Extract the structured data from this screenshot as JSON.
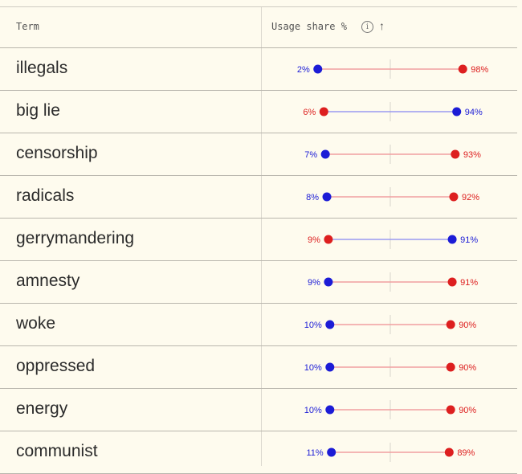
{
  "header": {
    "term_label": "Term",
    "usage_label": "Usage share %",
    "info_icon": "info-circle-icon",
    "sort_icon": "arrow-up-icon"
  },
  "colors": {
    "left": "#1c1cd6",
    "right": "#dd1f1f",
    "left_line": "#9a9af0",
    "right_line": "#f0a0a0",
    "background": "#fefbee"
  },
  "chart_data": {
    "type": "dot-plot",
    "xlim": [
      0,
      100
    ],
    "series": [
      {
        "color": "blue"
      },
      {
        "color": "red"
      }
    ],
    "rows": [
      {
        "term": "illegals",
        "blue": 2,
        "red": 98,
        "blue_label": "2%",
        "red_label": "98%"
      },
      {
        "term": "big lie",
        "blue": 94,
        "red": 6,
        "blue_label": "94%",
        "red_label": "6%"
      },
      {
        "term": "censorship",
        "blue": 7,
        "red": 93,
        "blue_label": "7%",
        "red_label": "93%"
      },
      {
        "term": "radicals",
        "blue": 8,
        "red": 92,
        "blue_label": "8%",
        "red_label": "92%"
      },
      {
        "term": "gerrymandering",
        "blue": 91,
        "red": 9,
        "blue_label": "91%",
        "red_label": "9%"
      },
      {
        "term": "amnesty",
        "blue": 9,
        "red": 91,
        "blue_label": "9%",
        "red_label": "91%"
      },
      {
        "term": "woke",
        "blue": 10,
        "red": 90,
        "blue_label": "10%",
        "red_label": "90%"
      },
      {
        "term": "oppressed",
        "blue": 10,
        "red": 90,
        "blue_label": "10%",
        "red_label": "90%"
      },
      {
        "term": "energy",
        "blue": 10,
        "red": 90,
        "blue_label": "10%",
        "red_label": "90%"
      },
      {
        "term": "communist",
        "blue": 11,
        "red": 89,
        "blue_label": "11%",
        "red_label": "89%"
      }
    ]
  }
}
